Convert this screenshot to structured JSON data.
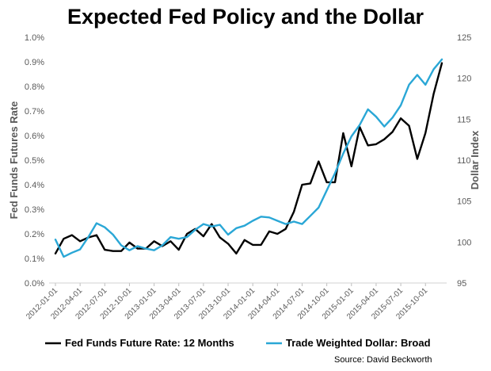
{
  "chart_data": {
    "type": "line",
    "title": "Expected Fed Policy and the Dollar",
    "ylabel_left": "Fed Funds Futures Rate",
    "ylabel_right": "Dollar Index",
    "source": "Source: David Beckworth",
    "y_left_lim": [
      0,
      1.0
    ],
    "y_left_ticks": [
      "0.0%",
      "0.1%",
      "0.2%",
      "0.3%",
      "0.4%",
      "0.5%",
      "0.6%",
      "0.7%",
      "0.8%",
      "0.9%",
      "1.0%"
    ],
    "y_right_lim": [
      95,
      125
    ],
    "y_right_ticks": [
      "95",
      "100",
      "105",
      "110",
      "115",
      "120",
      "125"
    ],
    "x_ticks": [
      "2012-01-01",
      "2012-04-01",
      "2012-07-01",
      "2012-10-01",
      "2013-01-01",
      "2013-04-01",
      "2013-07-01",
      "2013-10-01",
      "2014-01-01",
      "2014-04-01",
      "2014-07-01",
      "2014-10-01",
      "2015-01-01",
      "2015-04-01",
      "2015-07-01",
      "2015-10-01"
    ],
    "x": [
      "2012-01",
      "2012-02",
      "2012-03",
      "2012-04",
      "2012-05",
      "2012-06",
      "2012-07",
      "2012-08",
      "2012-09",
      "2012-10",
      "2012-11",
      "2012-12",
      "2013-01",
      "2013-02",
      "2013-03",
      "2013-04",
      "2013-05",
      "2013-06",
      "2013-07",
      "2013-08",
      "2013-09",
      "2013-10",
      "2013-11",
      "2013-12",
      "2014-01",
      "2014-02",
      "2014-03",
      "2014-04",
      "2014-05",
      "2014-06",
      "2014-07",
      "2014-08",
      "2014-09",
      "2014-10",
      "2014-11",
      "2014-12",
      "2015-01",
      "2015-02",
      "2015-03",
      "2015-04",
      "2015-05",
      "2015-06",
      "2015-07",
      "2015-08",
      "2015-09",
      "2015-10",
      "2015-11",
      "2015-12"
    ],
    "grid": false,
    "legend_position": "bottom",
    "series": [
      {
        "name": "Fed Funds Future Rate: 12 Months",
        "axis": "left",
        "color": "#000000",
        "values": [
          0.12,
          0.18,
          0.195,
          0.17,
          0.185,
          0.195,
          0.135,
          0.13,
          0.13,
          0.165,
          0.14,
          0.14,
          0.17,
          0.15,
          0.17,
          0.135,
          0.2,
          0.22,
          0.19,
          0.24,
          0.185,
          0.16,
          0.12,
          0.175,
          0.155,
          0.155,
          0.21,
          0.2,
          0.22,
          0.29,
          0.4,
          0.405,
          0.495,
          0.41,
          0.41,
          0.61,
          0.475,
          0.635,
          0.56,
          0.565,
          0.585,
          0.615,
          0.67,
          0.64,
          0.505,
          0.61,
          0.77,
          0.895
        ]
      },
      {
        "name": "Trade Weighted Dollar: Broad",
        "axis": "right",
        "color": "#2aa7d6",
        "values": [
          100.3,
          98.2,
          98.7,
          99.1,
          100.6,
          102.3,
          101.8,
          100.9,
          99.6,
          99.0,
          99.5,
          99.2,
          99.0,
          99.6,
          100.6,
          100.4,
          100.6,
          101.5,
          102.2,
          101.9,
          102.1,
          100.9,
          101.7,
          102.0,
          102.6,
          103.1,
          103.0,
          102.6,
          102.2,
          102.5,
          102.2,
          103.2,
          104.2,
          106.3,
          108.4,
          110.8,
          112.9,
          114.3,
          116.2,
          115.3,
          114.1,
          115.2,
          116.7,
          119.2,
          120.4,
          119.2,
          121.1,
          122.3
        ]
      }
    ]
  }
}
